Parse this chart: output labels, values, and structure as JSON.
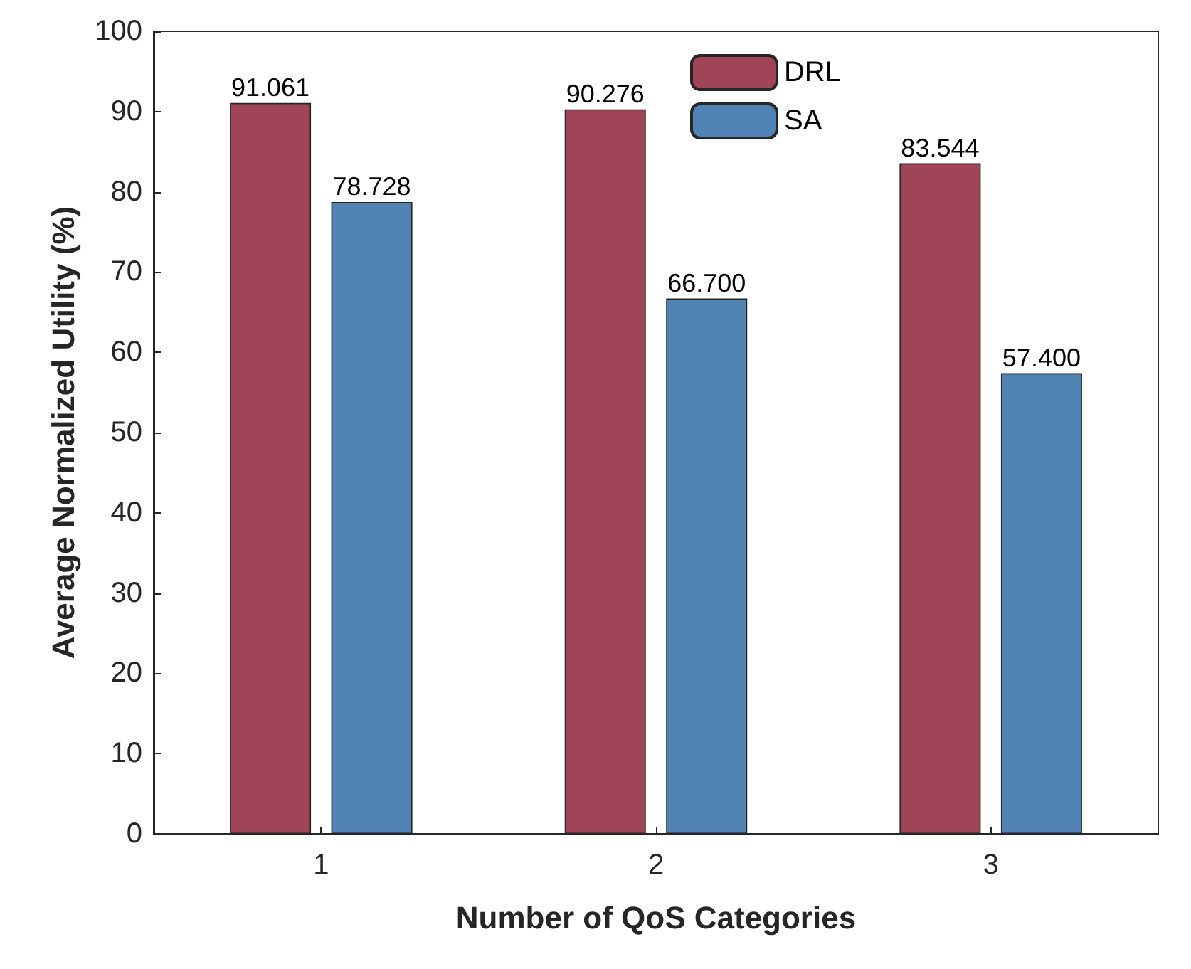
{
  "chart_data": {
    "type": "bar",
    "xlabel": "Number of QoS Categories",
    "ylabel": "Average Normalized Utility (%)",
    "categories": [
      "1",
      "2",
      "3"
    ],
    "series": [
      {
        "name": "DRL",
        "color": "#a04458",
        "values": [
          91.061,
          90.276,
          83.544
        ],
        "value_labels": [
          "91.061",
          "90.276",
          "83.544"
        ]
      },
      {
        "name": "SA",
        "color": "#5182b4",
        "values": [
          78.728,
          66.7,
          57.4
        ],
        "value_labels": [
          "78.728",
          "66.700",
          "57.400"
        ]
      }
    ],
    "ylim": [
      0,
      100
    ],
    "yticks": [
      0,
      10,
      20,
      30,
      40,
      50,
      60,
      70,
      80,
      90,
      100
    ],
    "grid": false,
    "legend": "top right"
  }
}
